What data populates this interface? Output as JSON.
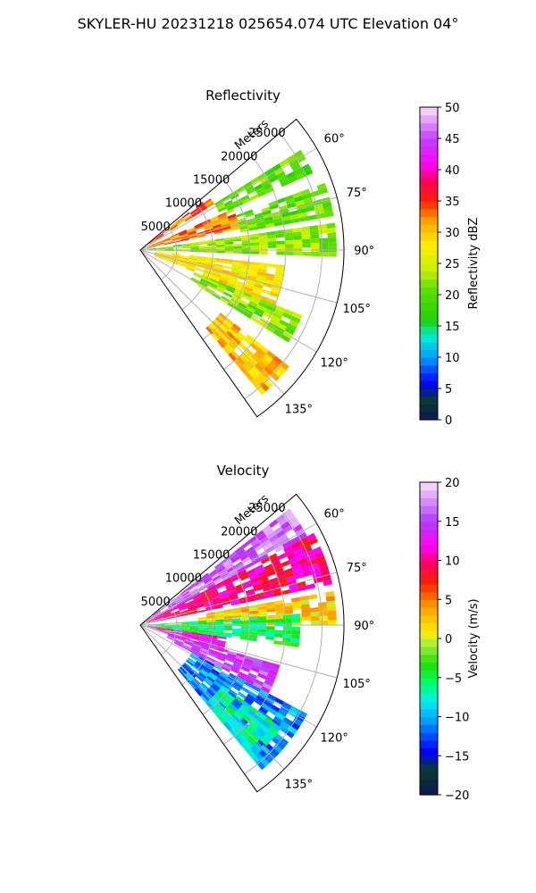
{
  "figure": {
    "suptitle": "SKYLER-HU  20231218  025654.074 UTC Elevation 04°"
  },
  "chart_data": [
    {
      "type": "heatmap",
      "subtype": "polar-sector-ppi",
      "title": "Reflectivity",
      "range_label": "Meters",
      "range_ticks": [
        5000,
        10000,
        15000,
        20000,
        25000
      ],
      "range_limit": [
        0,
        28000
      ],
      "azimuth_ticks": [
        "60°",
        "75°",
        "90°",
        "105°",
        "120°",
        "135°"
      ],
      "azimuth_tick_values": [
        60,
        75,
        90,
        105,
        120,
        135
      ],
      "azimuth_range_deg": [
        50,
        145
      ],
      "grid": true,
      "colorbar": {
        "label": "Reflectivity dBZ",
        "range": [
          0,
          50
        ],
        "ticks": [
          "0",
          "5",
          "10",
          "15",
          "20",
          "25",
          "30",
          "35",
          "40",
          "45",
          "50"
        ],
        "colormap": "pyart_NWSRef"
      },
      "field": [
        {
          "az_from": 52,
          "az_to": 58,
          "r_from": 1500,
          "r_to": 12000,
          "value": 34
        },
        {
          "az_from": 58,
          "az_to": 66,
          "r_from": 12000,
          "r_to": 26000,
          "value": 20
        },
        {
          "az_from": 66,
          "az_to": 78,
          "r_from": 1000,
          "r_to": 14000,
          "value": 33
        },
        {
          "az_from": 70,
          "az_to": 80,
          "r_from": 14000,
          "r_to": 27000,
          "value": 20
        },
        {
          "az_from": 82,
          "az_to": 92,
          "r_from": 1000,
          "r_to": 27000,
          "value": 22
        },
        {
          "az_from": 96,
          "az_to": 112,
          "r_from": 2000,
          "r_to": 20000,
          "value": 28
        },
        {
          "az_from": 112,
          "az_to": 122,
          "r_from": 8000,
          "r_to": 24000,
          "value": 22
        },
        {
          "az_from": 128,
          "az_to": 140,
          "r_from": 14000,
          "r_to": 26000,
          "value": 30
        }
      ]
    },
    {
      "type": "heatmap",
      "subtype": "polar-sector-ppi",
      "title": "Velocity",
      "range_label": "Meters",
      "range_ticks": [
        5000,
        10000,
        15000,
        20000,
        25000
      ],
      "range_limit": [
        0,
        28000
      ],
      "azimuth_ticks": [
        "60°",
        "75°",
        "90°",
        "105°",
        "120°",
        "135°"
      ],
      "azimuth_tick_values": [
        60,
        75,
        90,
        105,
        120,
        135
      ],
      "azimuth_range_deg": [
        50,
        145
      ],
      "grid": true,
      "colorbar": {
        "label": "Velocity (m/s)",
        "range": [
          -20,
          20
        ],
        "ticks": [
          "−20",
          "−15",
          "−10",
          "−5",
          "0",
          "5",
          "10",
          "15",
          "20"
        ],
        "colormap": "pyart_NWSVel"
      },
      "field": [
        {
          "az_from": 52,
          "az_to": 62,
          "r_from": 1000,
          "r_to": 26000,
          "value": 16
        },
        {
          "az_from": 62,
          "az_to": 78,
          "r_from": 1000,
          "r_to": 27000,
          "value": 10
        },
        {
          "az_from": 80,
          "az_to": 90,
          "r_from": 8000,
          "r_to": 27000,
          "value": 2
        },
        {
          "az_from": 86,
          "az_to": 98,
          "r_from": 1000,
          "r_to": 22000,
          "value": -5
        },
        {
          "az_from": 98,
          "az_to": 108,
          "r_from": 1000,
          "r_to": 12000,
          "value": 12
        },
        {
          "az_from": 106,
          "az_to": 118,
          "r_from": 4000,
          "r_to": 20000,
          "value": 15
        },
        {
          "az_from": 118,
          "az_to": 140,
          "r_from": 8000,
          "r_to": 26000,
          "value": -11
        },
        {
          "az_from": 126,
          "az_to": 140,
          "r_from": 14000,
          "r_to": 24000,
          "value": -7
        }
      ]
    }
  ]
}
